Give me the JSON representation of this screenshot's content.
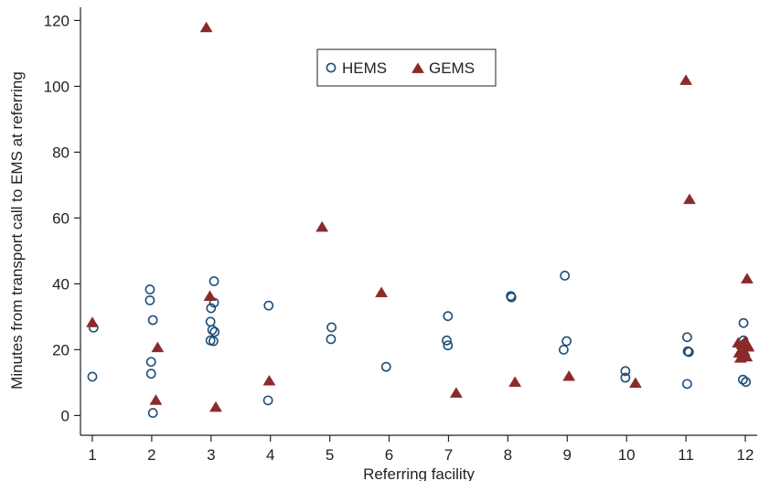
{
  "chart_data": {
    "type": "scatter",
    "title": "",
    "xlabel": "Referring facility",
    "ylabel": "Minutes from transport call to EMS at referring",
    "xlim": [
      0.8,
      12.2
    ],
    "ylim": [
      -6,
      124
    ],
    "xticks": [
      1,
      2,
      3,
      4,
      5,
      6,
      7,
      8,
      9,
      10,
      11,
      12
    ],
    "xtick_labels": [
      "1",
      "2",
      "3",
      "4",
      "5",
      "6",
      "7",
      "8",
      "9",
      "10",
      "11",
      "12"
    ],
    "yticks": [
      0,
      20,
      40,
      60,
      80,
      100,
      120
    ],
    "ytick_labels": [
      "0",
      "20",
      "40",
      "60",
      "80",
      "100",
      "120"
    ],
    "grid": false,
    "legend_position": "top-center",
    "series": [
      {
        "name": "HEMS",
        "marker": "circle-open",
        "color": "#1f4e79",
        "points": [
          [
            1.02,
            26.7
          ],
          [
            1.0,
            11.8
          ],
          [
            1.97,
            38.3
          ],
          [
            1.97,
            35.0
          ],
          [
            2.02,
            29.0
          ],
          [
            1.99,
            16.3
          ],
          [
            1.99,
            12.7
          ],
          [
            2.02,
            0.8
          ],
          [
            3.05,
            40.8
          ],
          [
            3.05,
            34.3
          ],
          [
            3.0,
            32.6
          ],
          [
            2.99,
            28.5
          ],
          [
            3.02,
            26.0
          ],
          [
            3.06,
            25.4
          ],
          [
            2.99,
            22.8
          ],
          [
            3.04,
            22.6
          ],
          [
            3.97,
            33.4
          ],
          [
            3.96,
            4.6
          ],
          [
            5.03,
            26.8
          ],
          [
            5.02,
            23.2
          ],
          [
            5.95,
            14.8
          ],
          [
            6.99,
            30.2
          ],
          [
            6.97,
            22.8
          ],
          [
            6.99,
            21.3
          ],
          [
            8.05,
            36.3
          ],
          [
            8.06,
            35.9
          ],
          [
            8.96,
            42.5
          ],
          [
            8.99,
            22.6
          ],
          [
            8.94,
            20.0
          ],
          [
            9.98,
            13.5
          ],
          [
            9.98,
            11.5
          ],
          [
            11.02,
            23.8
          ],
          [
            11.03,
            19.5
          ],
          [
            11.05,
            19.3
          ],
          [
            11.02,
            9.6
          ],
          [
            11.97,
            28.1
          ],
          [
            11.97,
            22.8
          ],
          [
            11.93,
            21.1
          ],
          [
            11.96,
            10.9
          ],
          [
            12.01,
            10.2
          ]
        ]
      },
      {
        "name": "GEMS",
        "marker": "triangle-filled",
        "color": "#8b2a2a",
        "points": [
          [
            1.0,
            28.2
          ],
          [
            2.1,
            20.6
          ],
          [
            2.07,
            4.6
          ],
          [
            2.92,
            117.8
          ],
          [
            2.98,
            36.2
          ],
          [
            3.08,
            2.5
          ],
          [
            3.98,
            10.5
          ],
          [
            4.87,
            57.2
          ],
          [
            5.87,
            37.3
          ],
          [
            7.13,
            6.8
          ],
          [
            8.12,
            10.1
          ],
          [
            9.03,
            11.9
          ],
          [
            10.15,
            9.8
          ],
          [
            11.0,
            101.8
          ],
          [
            11.06,
            65.6
          ],
          [
            12.03,
            41.5
          ],
          [
            11.88,
            22.0
          ],
          [
            11.9,
            19.0
          ],
          [
            11.92,
            17.4
          ],
          [
            11.95,
            21.5
          ],
          [
            11.98,
            19.5
          ],
          [
            12.0,
            22.5
          ],
          [
            12.02,
            17.8
          ],
          [
            12.05,
            20.8
          ],
          [
            11.97,
            18.2
          ],
          [
            12.04,
            21.2
          ]
        ]
      }
    ]
  }
}
